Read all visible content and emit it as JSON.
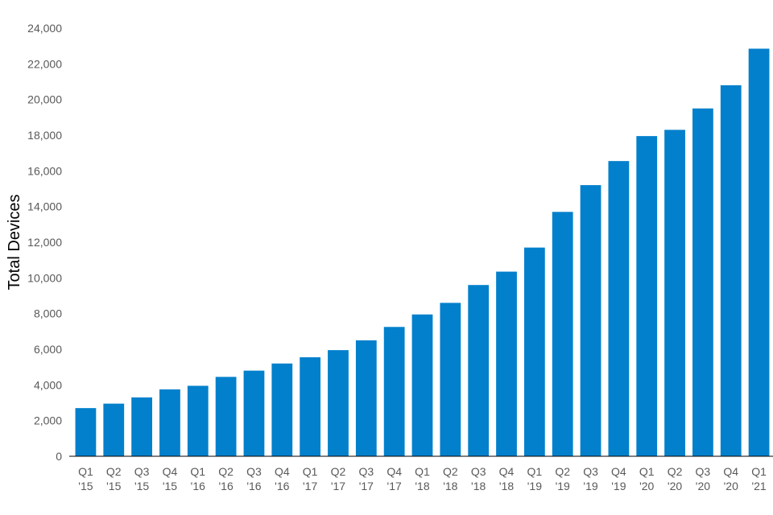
{
  "chart_data": {
    "type": "bar",
    "ylabel": "Total Devices",
    "xlabel": "",
    "title": "",
    "ylim": [
      0,
      24000
    ],
    "yticks": [
      0,
      2000,
      4000,
      6000,
      8000,
      10000,
      12000,
      14000,
      16000,
      18000,
      20000,
      22000,
      24000
    ],
    "ytick_labels": [
      "0",
      "2,000",
      "4,000",
      "6,000",
      "8,000",
      "10,000",
      "12,000",
      "14,000",
      "16,000",
      "18,000",
      "20,000",
      "22,000",
      "24,000"
    ],
    "categories": [
      [
        "Q1",
        "'15"
      ],
      [
        "Q2",
        "'15"
      ],
      [
        "Q3",
        "'15"
      ],
      [
        "Q4",
        "'15"
      ],
      [
        "Q1",
        "'16"
      ],
      [
        "Q2",
        "'16"
      ],
      [
        "Q3",
        "'16"
      ],
      [
        "Q4",
        "'16"
      ],
      [
        "Q1",
        "'17"
      ],
      [
        "Q2",
        "'17"
      ],
      [
        "Q3",
        "'17"
      ],
      [
        "Q4",
        "'17"
      ],
      [
        "Q1",
        "'18"
      ],
      [
        "Q2",
        "'18"
      ],
      [
        "Q3",
        "'18"
      ],
      [
        "Q4",
        "'18"
      ],
      [
        "Q1",
        "'19"
      ],
      [
        "Q2",
        "'19"
      ],
      [
        "Q3",
        "'19"
      ],
      [
        "Q4",
        "'19"
      ],
      [
        "Q1",
        "'20"
      ],
      [
        "Q2",
        "'20"
      ],
      [
        "Q3",
        "'20"
      ],
      [
        "Q4",
        "'20"
      ],
      [
        "Q1",
        "'21"
      ]
    ],
    "values": [
      2700,
      2950,
      3300,
      3750,
      3950,
      4450,
      4800,
      5200,
      5550,
      5950,
      6500,
      7250,
      7950,
      8600,
      9600,
      10350,
      11700,
      13700,
      15200,
      16550,
      17950,
      18300,
      19500,
      20800,
      22850
    ],
    "bar_color": "#0380CC",
    "grid": false,
    "legend": "none"
  }
}
